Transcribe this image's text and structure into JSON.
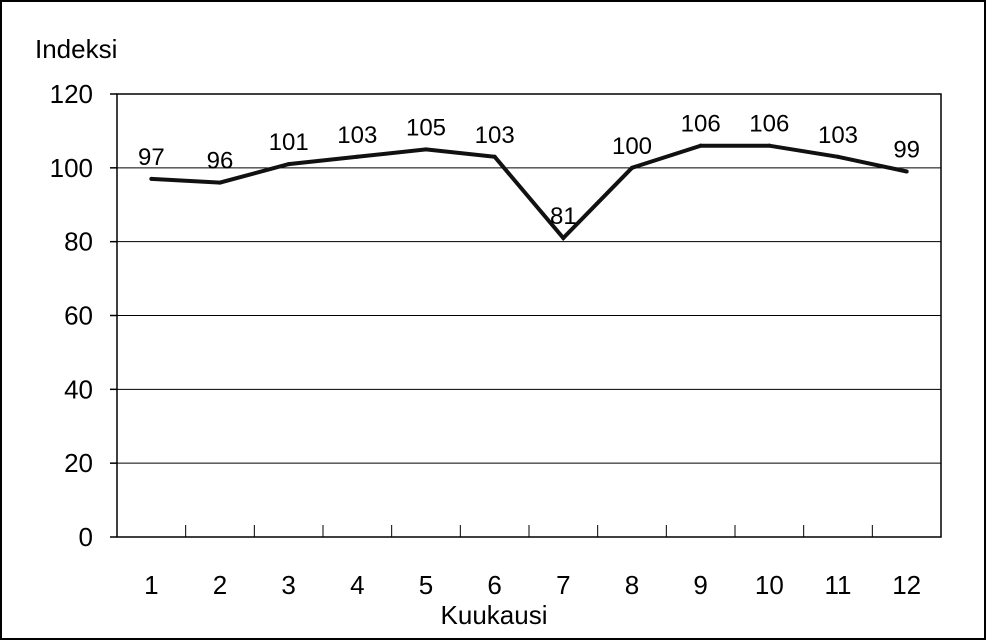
{
  "chart_data": {
    "type": "line",
    "title": "",
    "xlabel": "Kuukausi",
    "ylabel": "Indeksi",
    "categories": [
      "1",
      "2",
      "3",
      "4",
      "5",
      "6",
      "7",
      "8",
      "9",
      "10",
      "11",
      "12"
    ],
    "values": [
      97,
      96,
      101,
      103,
      105,
      103,
      81,
      100,
      106,
      106,
      103,
      99
    ],
    "value_labels": [
      "97",
      "96",
      "101",
      "103",
      "105",
      "103",
      "81",
      "100",
      "106",
      "106",
      "103",
      "99"
    ],
    "ylim": [
      0,
      120
    ],
    "yticks": [
      0,
      20,
      40,
      60,
      80,
      100,
      120
    ],
    "ytick_labels": [
      "0",
      "20",
      "40",
      "60",
      "80",
      "100",
      "120"
    ],
    "grid": "horizontal",
    "legend": "none",
    "colors": {
      "line": "#111111",
      "grid": "#000000",
      "frame": "#000000",
      "background": "#ffffff"
    }
  }
}
